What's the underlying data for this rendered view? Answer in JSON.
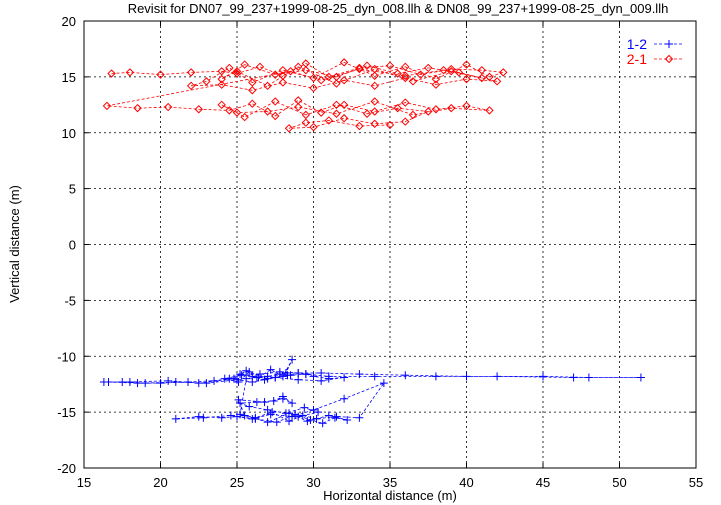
{
  "chart_data": {
    "type": "line",
    "title": "Revisit for DN07_99_237+1999-08-25_dyn_008.llh & DN08_99_237+1999-08-25_dyn_009.llh",
    "xlabel": "Horizontal distance (m)",
    "ylabel": "Vertical distance (m)",
    "xlim": [
      15,
      55
    ],
    "ylim": [
      -20,
      20
    ],
    "xticks": [
      "15",
      "20",
      "25",
      "30",
      "35",
      "40",
      "45",
      "50",
      "55"
    ],
    "yticks": [
      "20",
      "15",
      "10",
      "5",
      "0",
      "-5",
      "-10",
      "-15",
      "-20"
    ],
    "grid": true,
    "legend_position": "top-right",
    "series": [
      {
        "name": "1-2",
        "color": "#0000ff",
        "marker": "plus",
        "x": [
          16.6,
          18.5,
          20.0,
          21.8,
          23.5,
          24.5,
          25.2,
          26.0,
          26.8,
          27.5,
          28.3,
          29.0,
          29.5,
          30.0,
          31.0,
          32.0,
          30.5,
          29.0,
          27.5,
          26.0,
          25.0,
          23.0,
          21.0,
          19.0,
          17.5,
          16.3,
          18.0,
          20.5,
          22.5,
          24.8,
          25.6,
          26.4,
          27.2,
          28.0,
          28.6,
          28.2,
          27.0,
          25.8,
          25.1,
          24.2,
          25.3,
          26.5,
          27.8,
          29.0,
          30.5,
          33.0,
          36.0,
          40.0,
          45.0,
          48.0,
          51.4,
          47.0,
          42.0,
          38.0,
          34.0,
          31.0,
          29.5,
          28.5,
          27.8,
          27.0,
          26.3,
          25.6,
          25.2,
          26.2,
          27.3,
          28.4,
          29.3,
          30.2,
          31.5,
          33.0,
          34.6,
          32.0,
          30.0,
          28.6,
          27.2,
          26.0,
          25.0,
          24.0,
          22.5,
          21.0,
          22.8,
          24.6,
          26.2,
          27.6,
          28.8,
          29.8,
          30.6,
          31.4,
          32.2,
          31.0,
          29.6,
          28.4,
          27.0,
          25.5,
          25.1,
          26.8,
          28.0,
          28.6,
          28.0,
          27.4,
          26.3,
          25.2,
          25.8,
          27.0,
          28.2,
          29.4,
          30.3,
          29.0
        ],
        "y": [
          -12.3,
          -12.4,
          -12.4,
          -12.3,
          -12.2,
          -12.0,
          -11.6,
          -11.8,
          -12.1,
          -11.9,
          -11.7,
          -11.5,
          -11.6,
          -11.8,
          -12.0,
          -11.9,
          -12.2,
          -12.1,
          -11.9,
          -12.3,
          -12.1,
          -12.4,
          -12.3,
          -12.4,
          -12.3,
          -12.3,
          -12.3,
          -12.2,
          -12.4,
          -12.0,
          -11.3,
          -11.9,
          -11.2,
          -11.8,
          -10.3,
          -11.5,
          -12.0,
          -11.4,
          -12.3,
          -12.0,
          -11.7,
          -11.6,
          -11.4,
          -11.5,
          -11.5,
          -11.6,
          -11.7,
          -11.8,
          -11.8,
          -11.9,
          -11.9,
          -11.9,
          -11.8,
          -11.8,
          -11.8,
          -11.8,
          -11.6,
          -11.7,
          -11.6,
          -11.8,
          -11.9,
          -12.0,
          -15.2,
          -15.5,
          -15.0,
          -15.8,
          -15.3,
          -15.6,
          -15.4,
          -15.5,
          -12.4,
          -13.8,
          -14.8,
          -15.4,
          -15.2,
          -15.6,
          -15.4,
          -15.5,
          -15.4,
          -15.6,
          -15.5,
          -15.3,
          -15.6,
          -15.9,
          -15.2,
          -15.7,
          -16.0,
          -15.5,
          -15.7,
          -15.3,
          -15.8,
          -15.1,
          -15.9,
          -15.3,
          -13.9,
          -14.1,
          -13.8,
          -14.2,
          -13.6,
          -14.0,
          -14.1,
          -14.2,
          -14.5,
          -14.8,
          -15.1,
          -14.6,
          -15.0,
          -15.4
        ]
      },
      {
        "name": "2-1",
        "color": "#ff0000",
        "marker": "diamond",
        "x": [
          16.8,
          18.0,
          20.0,
          22.0,
          24.0,
          25.0,
          26.5,
          28.0,
          29.5,
          31.0,
          33.0,
          35.0,
          37.0,
          39.0,
          41.0,
          42.4,
          41.5,
          40.0,
          38.0,
          36.0,
          34.0,
          32.0,
          30.0,
          28.0,
          26.0,
          24.5,
          23.0,
          22.0,
          24.0,
          26.0,
          28.0,
          30.0,
          32.0,
          34.0,
          36.0,
          38.0,
          40.0,
          42.0,
          39.0,
          36.5,
          34.0,
          31.5,
          29.0,
          27.0,
          25.0,
          24.0,
          25.5,
          27.5,
          29.5,
          31.5,
          33.5,
          35.5,
          37.5,
          39.5,
          41.0,
          38.5,
          36.0,
          33.0,
          30.5,
          28.5,
          16.5,
          18.5,
          20.5,
          22.5,
          24.5,
          26.0,
          27.5,
          29.0,
          30.5,
          32.0,
          34.0,
          36.0,
          38.0,
          40.0,
          41.5,
          39.0,
          36.5,
          34.0,
          31.5,
          29.0,
          27.0,
          25.0,
          24.0,
          25.5,
          27.5,
          29.5,
          31.5,
          33.5,
          35.5,
          37.5,
          36.0,
          34.0,
          32.0,
          30.0,
          28.4,
          29.5,
          31.0,
          33.0,
          35.0
        ],
        "y": [
          15.3,
          15.4,
          15.2,
          15.4,
          15.5,
          15.3,
          15.9,
          15.1,
          16.2,
          15.0,
          15.8,
          16.0,
          15.2,
          15.7,
          15.6,
          15.4,
          15.0,
          16.1,
          14.8,
          15.9,
          15.1,
          16.3,
          14.9,
          15.6,
          14.5,
          15.8,
          14.6,
          14.2,
          14.3,
          13.8,
          14.5,
          14.0,
          14.7,
          14.2,
          14.9,
          14.3,
          14.8,
          14.6,
          15.5,
          14.6,
          15.7,
          14.4,
          15.9,
          14.2,
          15.5,
          14.8,
          16.1,
          15.2,
          15.6,
          15.0,
          16.0,
          15.3,
          15.8,
          15.4,
          14.9,
          15.6,
          15.1,
          15.7,
          14.7,
          15.5,
          12.4,
          12.2,
          12.3,
          12.1,
          12.0,
          12.6,
          11.5,
          12.9,
          11.8,
          12.5,
          11.9,
          12.7,
          12.1,
          12.4,
          12.0,
          12.2,
          11.6,
          12.8,
          11.7,
          12.3,
          11.9,
          11.8,
          12.5,
          11.4,
          12.8,
          11.6,
          12.5,
          11.7,
          12.2,
          11.9,
          11.0,
          10.8,
          11.3,
          10.5,
          10.4,
          10.9,
          11.1,
          10.6,
          10.7
        ]
      }
    ]
  }
}
